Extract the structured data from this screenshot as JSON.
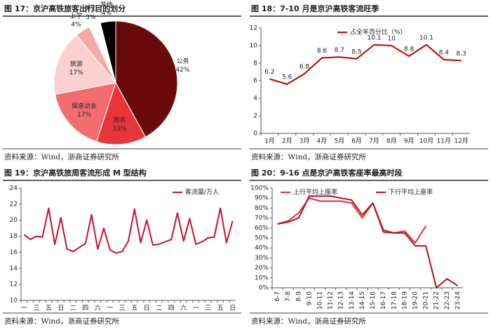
{
  "chart_data": [
    {
      "type": "pie",
      "title": "图 17：京沪高铁旅客出行目的划分",
      "source": "资料来源：Wind，浙商证券研究所",
      "categories": [
        "公务",
        "商务",
        "探亲访友",
        "旅游",
        "上学",
        "务工",
        "其他"
      ],
      "values": [
        42,
        13,
        17,
        17,
        4,
        3,
        4
      ],
      "value_labels": [
        "42%",
        "13%",
        "17%",
        "17%",
        "4%",
        "3%",
        "4%"
      ],
      "colors": [
        "#6b0a0a",
        "#e8353a",
        "#f26d70",
        "#fad0d0",
        "#f5a9a9",
        "#ffffff",
        "#000000"
      ]
    },
    {
      "type": "line",
      "title": "图 18：7-10 月是京沪高铁客流旺季",
      "source": "资料来源：Wind，浙商证券研究所",
      "categories": [
        "1月",
        "2月",
        "3月",
        "4月",
        "5月",
        "6月",
        "7月",
        "8月",
        "9月",
        "10月",
        "11月",
        "12月"
      ],
      "series": [
        {
          "name": "占全年百分比（%）",
          "color": "#c00000",
          "values": [
            6.2,
            5.6,
            6.8,
            8.6,
            8.7,
            8.5,
            10.1,
            10,
            8.8,
            10.1,
            8.4,
            8.3
          ]
        }
      ],
      "data_labels": true,
      "legend": "upper center",
      "ylim": [
        0,
        12
      ],
      "yticks": [
        0,
        2,
        4,
        6,
        8,
        10,
        12
      ]
    },
    {
      "type": "line",
      "title": "图 19：京沪高铁旅周客流形成 M 型结构",
      "source": "资料来源：Wind，浙商证券研究所",
      "categories": [
        "一",
        null,
        "三",
        null,
        "五",
        null,
        "日",
        null,
        "二",
        null,
        "四",
        null,
        "六",
        null,
        "一",
        null,
        "三",
        null,
        "五",
        null,
        "日",
        null,
        "二",
        null,
        "四",
        null,
        "六",
        null,
        "一",
        null,
        "三",
        null,
        "五",
        null,
        "日"
      ],
      "series": [
        {
          "name": "客流量/万人",
          "color": "#c8102e",
          "values": [
            18.2,
            17.6,
            18.0,
            17.9,
            21.5,
            17.0,
            20.3,
            16.4,
            16.1,
            16.6,
            17.1,
            20.7,
            16.4,
            19.0,
            16.3,
            15.9,
            16.1,
            17.4,
            21.4,
            17.2,
            20.0,
            16.9,
            17.0,
            17.3,
            17.6,
            20.9,
            17.4,
            20.2,
            17.0,
            17.3,
            17.8,
            17.9,
            21.5,
            17.2,
            19.9
          ]
        }
      ],
      "legend": "upper right",
      "ylim": [
        10,
        24
      ],
      "yticks": [
        10,
        12,
        14,
        16,
        18,
        20,
        22,
        24
      ]
    },
    {
      "type": "line",
      "title": "图 20：9-16 点是京沪高铁客座率最高时段",
      "source": "资料来源：Wind，浙商证券研究所",
      "categories": [
        "6-7",
        "7-8",
        "8-9",
        "9-10",
        "10-11",
        "11-12",
        "12-13",
        "13-14",
        "14-15",
        "15-16",
        "16-17",
        "17-18",
        "18-19",
        "19-20",
        "20-21",
        "21-22",
        "22-23",
        "23-24"
      ],
      "series": [
        {
          "name": "上行平均上座率",
          "color": "#e0303a",
          "values": [
            64,
            67,
            75,
            90,
            87,
            87,
            87,
            85,
            70,
            85,
            58,
            55,
            57,
            45,
            62,
            null,
            null,
            null
          ]
        },
        {
          "name": "下行平均上座率",
          "color": "#b0101a",
          "values": [
            64,
            66,
            70,
            92,
            92,
            92,
            90,
            88,
            73,
            85,
            56,
            55,
            55,
            42,
            42,
            0,
            9,
            2
          ]
        }
      ],
      "legend": "upper",
      "rotate_x_labels": true,
      "ylim": [
        0,
        100
      ],
      "yticks": [
        {
          "value": 0,
          "label": "0%"
        },
        {
          "value": 10,
          "label": "10%"
        },
        {
          "value": 20,
          "label": "20%"
        },
        {
          "value": 30,
          "label": "30%"
        },
        {
          "value": 40,
          "label": "40%"
        },
        {
          "value": 50,
          "label": "50%"
        },
        {
          "value": 60,
          "label": "60%"
        },
        {
          "value": 70,
          "label": "70%"
        },
        {
          "value": 80,
          "label": "80%"
        },
        {
          "value": 90,
          "label": "90%"
        },
        {
          "value": 100,
          "label": "100%"
        }
      ]
    }
  ]
}
